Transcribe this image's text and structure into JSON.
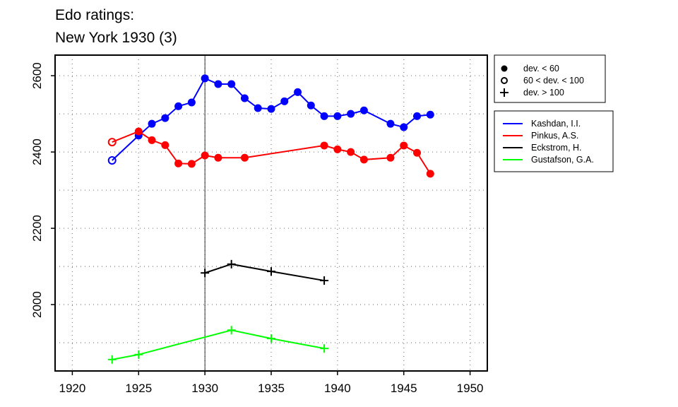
{
  "chart_data": {
    "type": "line",
    "title_line1": "Edo ratings:",
    "title_line2": "New York 1930 (3)",
    "xlabel": "",
    "ylabel": "",
    "xlim": [
      1918.7,
      1951.3
    ],
    "ylim": [
      1826,
      2654
    ],
    "xticks": [
      1920,
      1925,
      1930,
      1935,
      1940,
      1945,
      1950
    ],
    "yticks": [
      2000,
      2200,
      2400,
      2600
    ],
    "grid": true,
    "grid_y_step": 100,
    "marker_year": 1930,
    "marker_legend": [
      {
        "symbol": "filled-circle",
        "label": "dev. < 60"
      },
      {
        "symbol": "open-circle",
        "label": "60 < dev. < 100"
      },
      {
        "symbol": "plus",
        "label": "dev. > 100"
      }
    ],
    "legend_placement": "right",
    "series": [
      {
        "name": "Kashdan, I.I.",
        "color": "#0000ff",
        "x": [
          1923,
          1925,
          1926,
          1927,
          1928,
          1929,
          1930,
          1931,
          1932,
          1933,
          1934,
          1935,
          1936,
          1937,
          1938,
          1939,
          1940,
          1941,
          1942,
          1944,
          1945,
          1946,
          1947
        ],
        "y": [
          2378,
          2443,
          2474,
          2489,
          2520,
          2530,
          2593,
          2578,
          2578,
          2541,
          2515,
          2513,
          2533,
          2557,
          2522,
          2494,
          2494,
          2500,
          2509,
          2474,
          2465,
          2494,
          2498
        ],
        "marker": [
          "o",
          "f",
          "f",
          "f",
          "f",
          "f",
          "f",
          "f",
          "f",
          "f",
          "f",
          "f",
          "f",
          "f",
          "f",
          "f",
          "f",
          "f",
          "f",
          "f",
          "f",
          "f",
          "f"
        ]
      },
      {
        "name": "Pinkus, A.S.",
        "color": "#ff0000",
        "x": [
          1923,
          1925,
          1926,
          1927,
          1928,
          1929,
          1930,
          1931,
          1933,
          1939,
          1940,
          1941,
          1942,
          1944,
          1945,
          1946,
          1947
        ],
        "y": [
          2426,
          2454,
          2431,
          2418,
          2370,
          2369,
          2391,
          2385,
          2385,
          2417,
          2407,
          2400,
          2380,
          2385,
          2417,
          2398,
          2343
        ],
        "marker": [
          "o",
          "f",
          "f",
          "f",
          "f",
          "f",
          "f",
          "f",
          "f",
          "f",
          "f",
          "f",
          "f",
          "f",
          "f",
          "f",
          "f"
        ]
      },
      {
        "name": "Eckstrom, H.",
        "color": "#000000",
        "x": [
          1930,
          1932,
          1935,
          1939
        ],
        "y": [
          2083,
          2106,
          2087,
          2063
        ],
        "marker": [
          "p",
          "p",
          "p",
          "p"
        ]
      },
      {
        "name": "Gustafson, G.A.",
        "color": "#00ff00",
        "x": [
          1923,
          1925,
          1932,
          1935,
          1939
        ],
        "y": [
          1856,
          1869,
          1933,
          1911,
          1885
        ],
        "marker": [
          "p",
          "p",
          "p",
          "p",
          "p"
        ]
      }
    ]
  }
}
